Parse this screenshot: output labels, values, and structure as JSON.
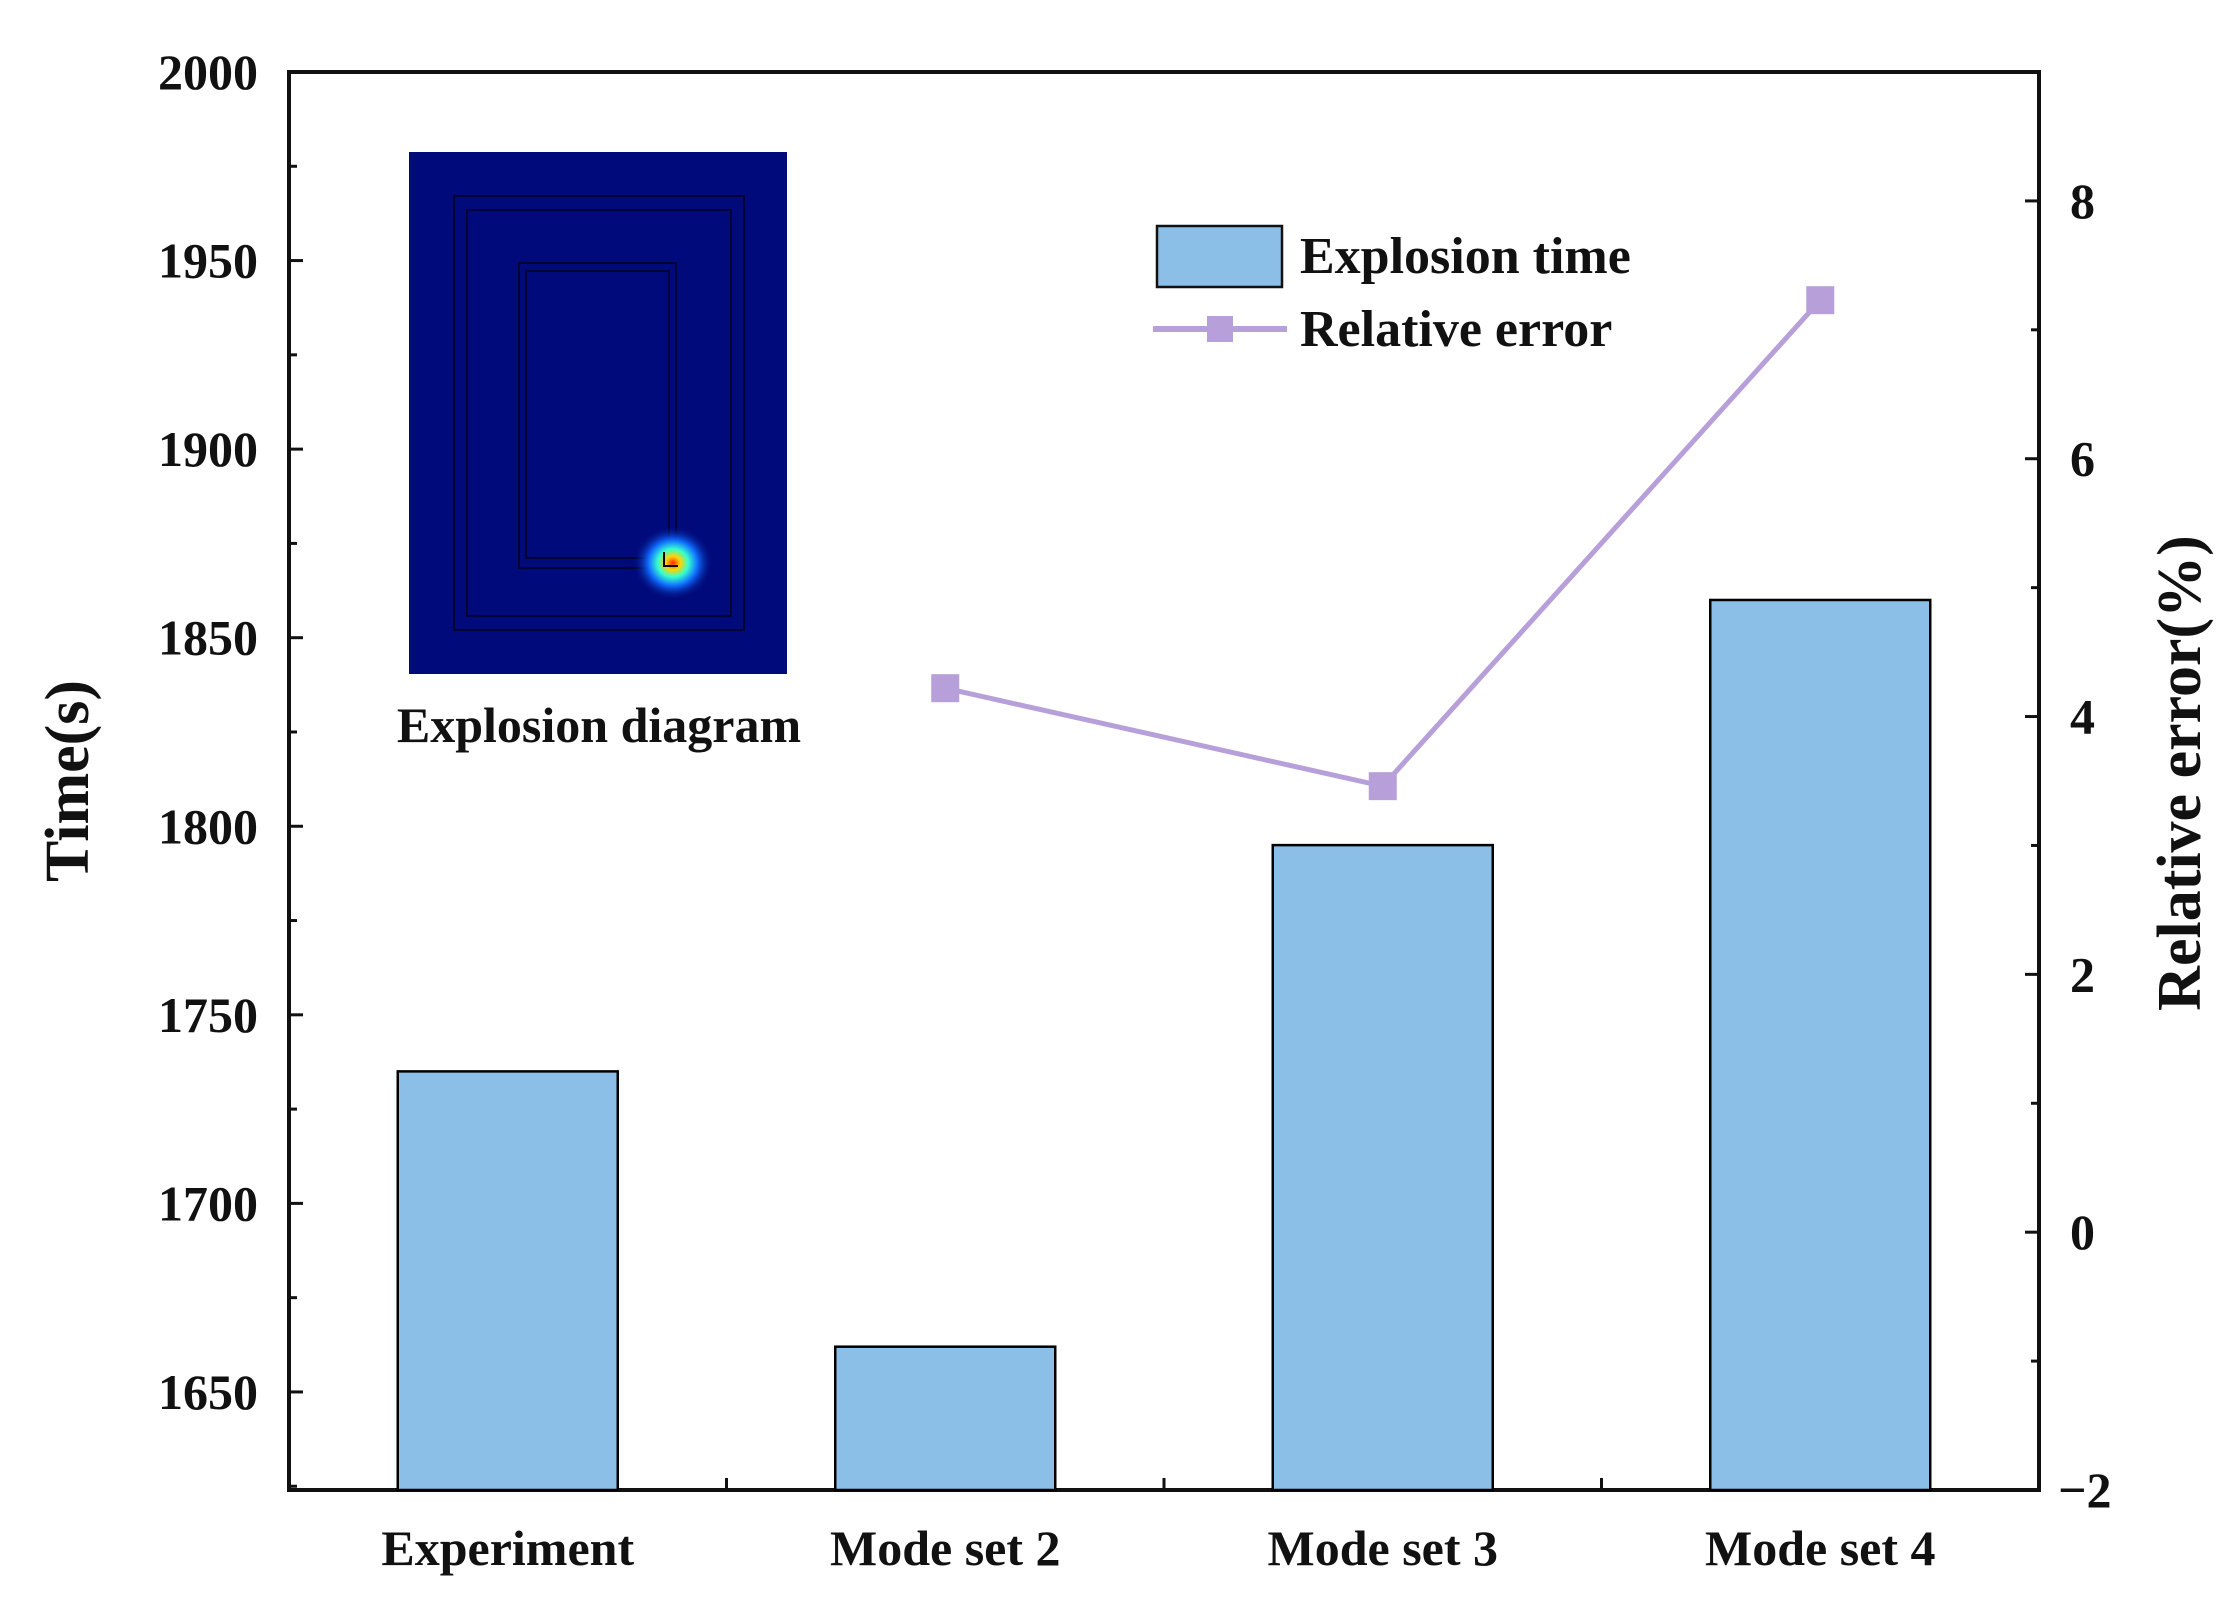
{
  "chart_data": {
    "type": "bar",
    "categories": [
      "Experiment",
      "Mode set 2",
      "Mode set 3",
      "Mode set 4"
    ],
    "series": [
      {
        "name": "Explosion time",
        "type": "bar",
        "axis": "left",
        "values": [
          1735,
          1662,
          1795,
          1860
        ]
      },
      {
        "name": "Relative error",
        "type": "line",
        "axis": "right",
        "marker": "square",
        "values": [
          null,
          4.22,
          3.46,
          7.23
        ]
      }
    ],
    "ylabel": "Time(s)",
    "ylabel_right": "Relative error(%)",
    "ylim": [
      1624,
      2000
    ],
    "ylim_right": [
      -2,
      9
    ],
    "yticks": [
      1650,
      1700,
      1750,
      1800,
      1850,
      1900,
      1950,
      2000
    ],
    "yticks_right": [
      -2,
      0,
      2,
      4,
      6,
      8
    ],
    "legend_placement": "upper-center-right",
    "grid": false,
    "colors": {
      "bar_fill": "#8bbfe8",
      "bar_stroke": "#000000",
      "line": "#b79fd9",
      "marker": "#b79fd9",
      "inset_background": "#010a7a"
    },
    "inset": {
      "label": "Explosion diagram"
    }
  }
}
